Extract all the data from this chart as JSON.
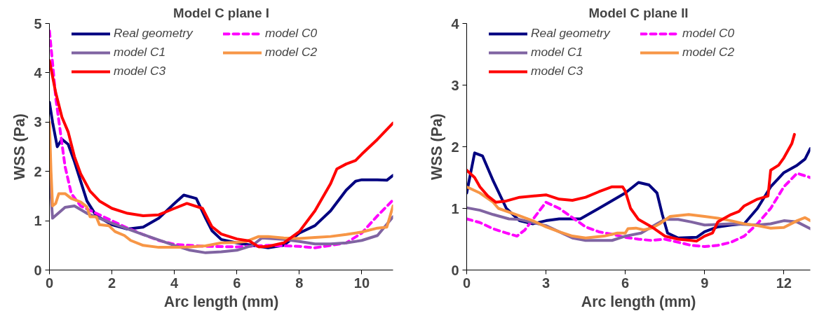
{
  "chart_data": [
    {
      "type": "line",
      "title": "Model C plane I",
      "xlabel": "Arc length (mm)",
      "ylabel": "WSS (Pa)",
      "xlim": [
        0,
        11
      ],
      "ylim": [
        0,
        5
      ],
      "xticks": [
        0,
        2,
        4,
        6,
        8,
        10
      ],
      "yticks": [
        0,
        1,
        2,
        3,
        4,
        5
      ],
      "grid": false,
      "legend": "top",
      "marker": "none",
      "series": [
        {
          "name": "Real geometry",
          "color": "#000080",
          "line_style": "solid",
          "x": [
            0,
            0.1,
            0.25,
            0.4,
            0.6,
            0.8,
            1.0,
            1.2,
            1.5,
            2,
            2.5,
            3,
            3.5,
            4,
            4.3,
            4.7,
            5,
            5.2,
            5.5,
            6,
            6.5,
            7,
            7.5,
            8,
            8.5,
            9,
            9.5,
            9.8,
            10,
            10.5,
            10.8,
            11
          ],
          "values": [
            3.4,
            3.0,
            2.5,
            2.65,
            2.55,
            2.2,
            1.8,
            1.4,
            1.1,
            0.92,
            0.83,
            0.87,
            1.05,
            1.35,
            1.52,
            1.45,
            1.05,
            0.8,
            0.62,
            0.55,
            0.5,
            0.45,
            0.5,
            0.75,
            0.9,
            1.2,
            1.62,
            1.8,
            1.83,
            1.83,
            1.82,
            1.92
          ]
        },
        {
          "name": "model C0",
          "color": "#ff00ff",
          "line_style": "dashed",
          "x": [
            0,
            0.1,
            0.2,
            0.35,
            0.5,
            0.7,
            1,
            1.5,
            2,
            2.5,
            3,
            3.5,
            4,
            5,
            6,
            7,
            8,
            8.5,
            9,
            9.5,
            10,
            10.5,
            11
          ],
          "values": [
            4.85,
            4.2,
            3.5,
            2.8,
            2.1,
            1.55,
            1.3,
            1.15,
            1.0,
            0.85,
            0.72,
            0.6,
            0.52,
            0.48,
            0.47,
            0.5,
            0.48,
            0.45,
            0.5,
            0.55,
            0.75,
            1.1,
            1.42
          ]
        },
        {
          "name": "model C1",
          "color": "#8064a2",
          "line_style": "solid",
          "x": [
            0,
            0.1,
            0.5,
            0.8,
            1.2,
            2,
            3,
            4,
            4.5,
            5,
            5.5,
            6,
            6.5,
            6.8,
            7.5,
            8,
            8.5,
            9,
            9.5,
            10,
            10.5,
            11
          ],
          "values": [
            2.0,
            1.05,
            1.27,
            1.3,
            1.15,
            0.95,
            0.72,
            0.5,
            0.4,
            0.35,
            0.37,
            0.4,
            0.5,
            0.65,
            0.62,
            0.58,
            0.53,
            0.53,
            0.55,
            0.6,
            0.7,
            1.08
          ]
        },
        {
          "name": "model C2",
          "color": "#f79646",
          "line_style": "solid",
          "x": [
            0,
            0.05,
            0.1,
            0.2,
            0.3,
            0.5,
            0.7,
            1,
            1.2,
            1.3,
            1.5,
            1.6,
            1.9,
            2.1,
            2.4,
            2.6,
            3,
            3.5,
            4,
            4.5,
            5,
            5.5,
            6,
            6.3,
            6.7,
            7,
            7.5,
            8,
            8.5,
            9,
            9.5,
            10,
            10.5,
            10.8,
            11
          ],
          "values": [
            3.0,
            2.0,
            1.3,
            1.35,
            1.55,
            1.55,
            1.45,
            1.38,
            1.28,
            1.08,
            1.08,
            0.92,
            0.9,
            0.78,
            0.7,
            0.6,
            0.5,
            0.46,
            0.46,
            0.47,
            0.49,
            0.55,
            0.56,
            0.58,
            0.68,
            0.68,
            0.65,
            0.64,
            0.66,
            0.68,
            0.72,
            0.77,
            0.85,
            0.87,
            1.3
          ]
        },
        {
          "name": "model C3",
          "color": "#ff0000",
          "line_style": "solid",
          "x": [
            0,
            0.2,
            0.4,
            0.6,
            0.8,
            1.0,
            1.3,
            1.6,
            2,
            2.5,
            3,
            3.5,
            4,
            4.4,
            4.9,
            5.2,
            5.5,
            6,
            6.4,
            6.7,
            7,
            7.5,
            8,
            8.5,
            9,
            9.2,
            9.5,
            9.8,
            10,
            10.5,
            11
          ],
          "values": [
            4.25,
            3.6,
            3.1,
            2.8,
            2.3,
            1.95,
            1.6,
            1.4,
            1.25,
            1.15,
            1.1,
            1.12,
            1.25,
            1.35,
            1.25,
            0.88,
            0.73,
            0.63,
            0.59,
            0.47,
            0.48,
            0.55,
            0.78,
            1.2,
            1.75,
            2.05,
            2.15,
            2.22,
            2.35,
            2.65,
            2.98
          ]
        }
      ]
    },
    {
      "type": "line",
      "title": "Model C plane II",
      "xlabel": "Arc length (mm)",
      "ylabel": "WSS (Pa)",
      "xlim": [
        0,
        13
      ],
      "ylim": [
        0,
        4
      ],
      "xticks": [
        0,
        3,
        6,
        9,
        12
      ],
      "yticks": [
        0,
        1,
        2,
        3,
        4
      ],
      "grid": false,
      "legend": "top",
      "marker": "none",
      "series": [
        {
          "name": "Real geometry",
          "color": "#000080",
          "line_style": "solid",
          "x": [
            0,
            0.3,
            0.6,
            1,
            1.5,
            2,
            2.5,
            3,
            3.5,
            4.3,
            5,
            6,
            6.5,
            6.9,
            7.2,
            7.4,
            7.6,
            8,
            8.7,
            9,
            9.5,
            10,
            10.5,
            11,
            11.5,
            12,
            12.5,
            12.8,
            13
          ],
          "values": [
            1.25,
            1.9,
            1.85,
            1.45,
            1.0,
            0.8,
            0.75,
            0.8,
            0.83,
            0.83,
            1.0,
            1.25,
            1.42,
            1.38,
            1.25,
            0.9,
            0.6,
            0.52,
            0.53,
            0.62,
            0.7,
            0.73,
            0.75,
            1.0,
            1.35,
            1.58,
            1.7,
            1.8,
            1.97
          ]
        },
        {
          "name": "model C0",
          "color": "#ff00ff",
          "line_style": "dashed",
          "x": [
            0,
            0.5,
            1,
            1.5,
            1.9,
            2.2,
            2.5,
            3,
            3.5,
            4,
            4.5,
            5,
            5.5,
            6,
            6.5,
            7,
            7.5,
            8,
            8.5,
            9,
            9.5,
            10,
            10.5,
            11,
            11.5,
            12,
            12.5,
            13
          ],
          "values": [
            0.83,
            0.77,
            0.67,
            0.6,
            0.55,
            0.65,
            0.82,
            1.1,
            1.0,
            0.85,
            0.7,
            0.62,
            0.58,
            0.53,
            0.5,
            0.48,
            0.5,
            0.45,
            0.4,
            0.38,
            0.4,
            0.45,
            0.55,
            0.75,
            1.0,
            1.35,
            1.57,
            1.5
          ]
        },
        {
          "name": "model C1",
          "color": "#8064a2",
          "line_style": "solid",
          "x": [
            0,
            0.5,
            1,
            1.6,
            2,
            3,
            4,
            4.5,
            5.5,
            6,
            6.6,
            7.2,
            7.5,
            8,
            8.5,
            9,
            10,
            11,
            11.5,
            12,
            12.5,
            13
          ],
          "values": [
            1.01,
            0.97,
            0.9,
            0.83,
            0.82,
            0.72,
            0.52,
            0.48,
            0.48,
            0.55,
            0.6,
            0.75,
            0.82,
            0.82,
            0.78,
            0.73,
            0.75,
            0.73,
            0.75,
            0.8,
            0.78,
            0.67
          ]
        },
        {
          "name": "model C2",
          "color": "#f79646",
          "line_style": "solid",
          "x": [
            0,
            0.5,
            1,
            1.2,
            2,
            2.5,
            3,
            3.5,
            4,
            4.5,
            5.2,
            5.7,
            6,
            6.1,
            6.4,
            6.7,
            7,
            7.3,
            7.7,
            8.4,
            9,
            9.5,
            10,
            10.5,
            11,
            11.5,
            12,
            12.5,
            12.8,
            13
          ],
          "values": [
            1.35,
            1.25,
            1.1,
            1.0,
            0.88,
            0.8,
            0.7,
            0.62,
            0.55,
            0.52,
            0.55,
            0.6,
            0.6,
            0.67,
            0.68,
            0.65,
            0.68,
            0.75,
            0.87,
            0.9,
            0.87,
            0.84,
            0.8,
            0.75,
            0.72,
            0.68,
            0.69,
            0.8,
            0.85,
            0.8
          ]
        },
        {
          "name": "model C3",
          "color": "#ff0000",
          "line_style": "solid",
          "x": [
            0,
            0.3,
            0.5,
            0.8,
            1.1,
            1.5,
            2,
            3,
            3.5,
            4,
            4.5,
            5,
            5.5,
            5.9,
            6,
            6.2,
            6.5,
            7,
            7.5,
            8,
            8.5,
            8.7,
            9,
            9.3,
            9.5,
            10,
            10.3,
            10.5,
            11,
            11.4,
            11.5,
            11.8,
            12,
            12.3,
            12.4
          ],
          "values": [
            1.62,
            1.5,
            1.35,
            1.2,
            1.1,
            1.12,
            1.18,
            1.22,
            1.15,
            1.13,
            1.18,
            1.27,
            1.35,
            1.35,
            1.28,
            1.0,
            0.82,
            0.7,
            0.55,
            0.5,
            0.48,
            0.47,
            0.55,
            0.6,
            0.78,
            0.9,
            0.95,
            1.04,
            1.15,
            1.2,
            1.62,
            1.7,
            1.82,
            2.05,
            2.2
          ]
        }
      ]
    }
  ]
}
